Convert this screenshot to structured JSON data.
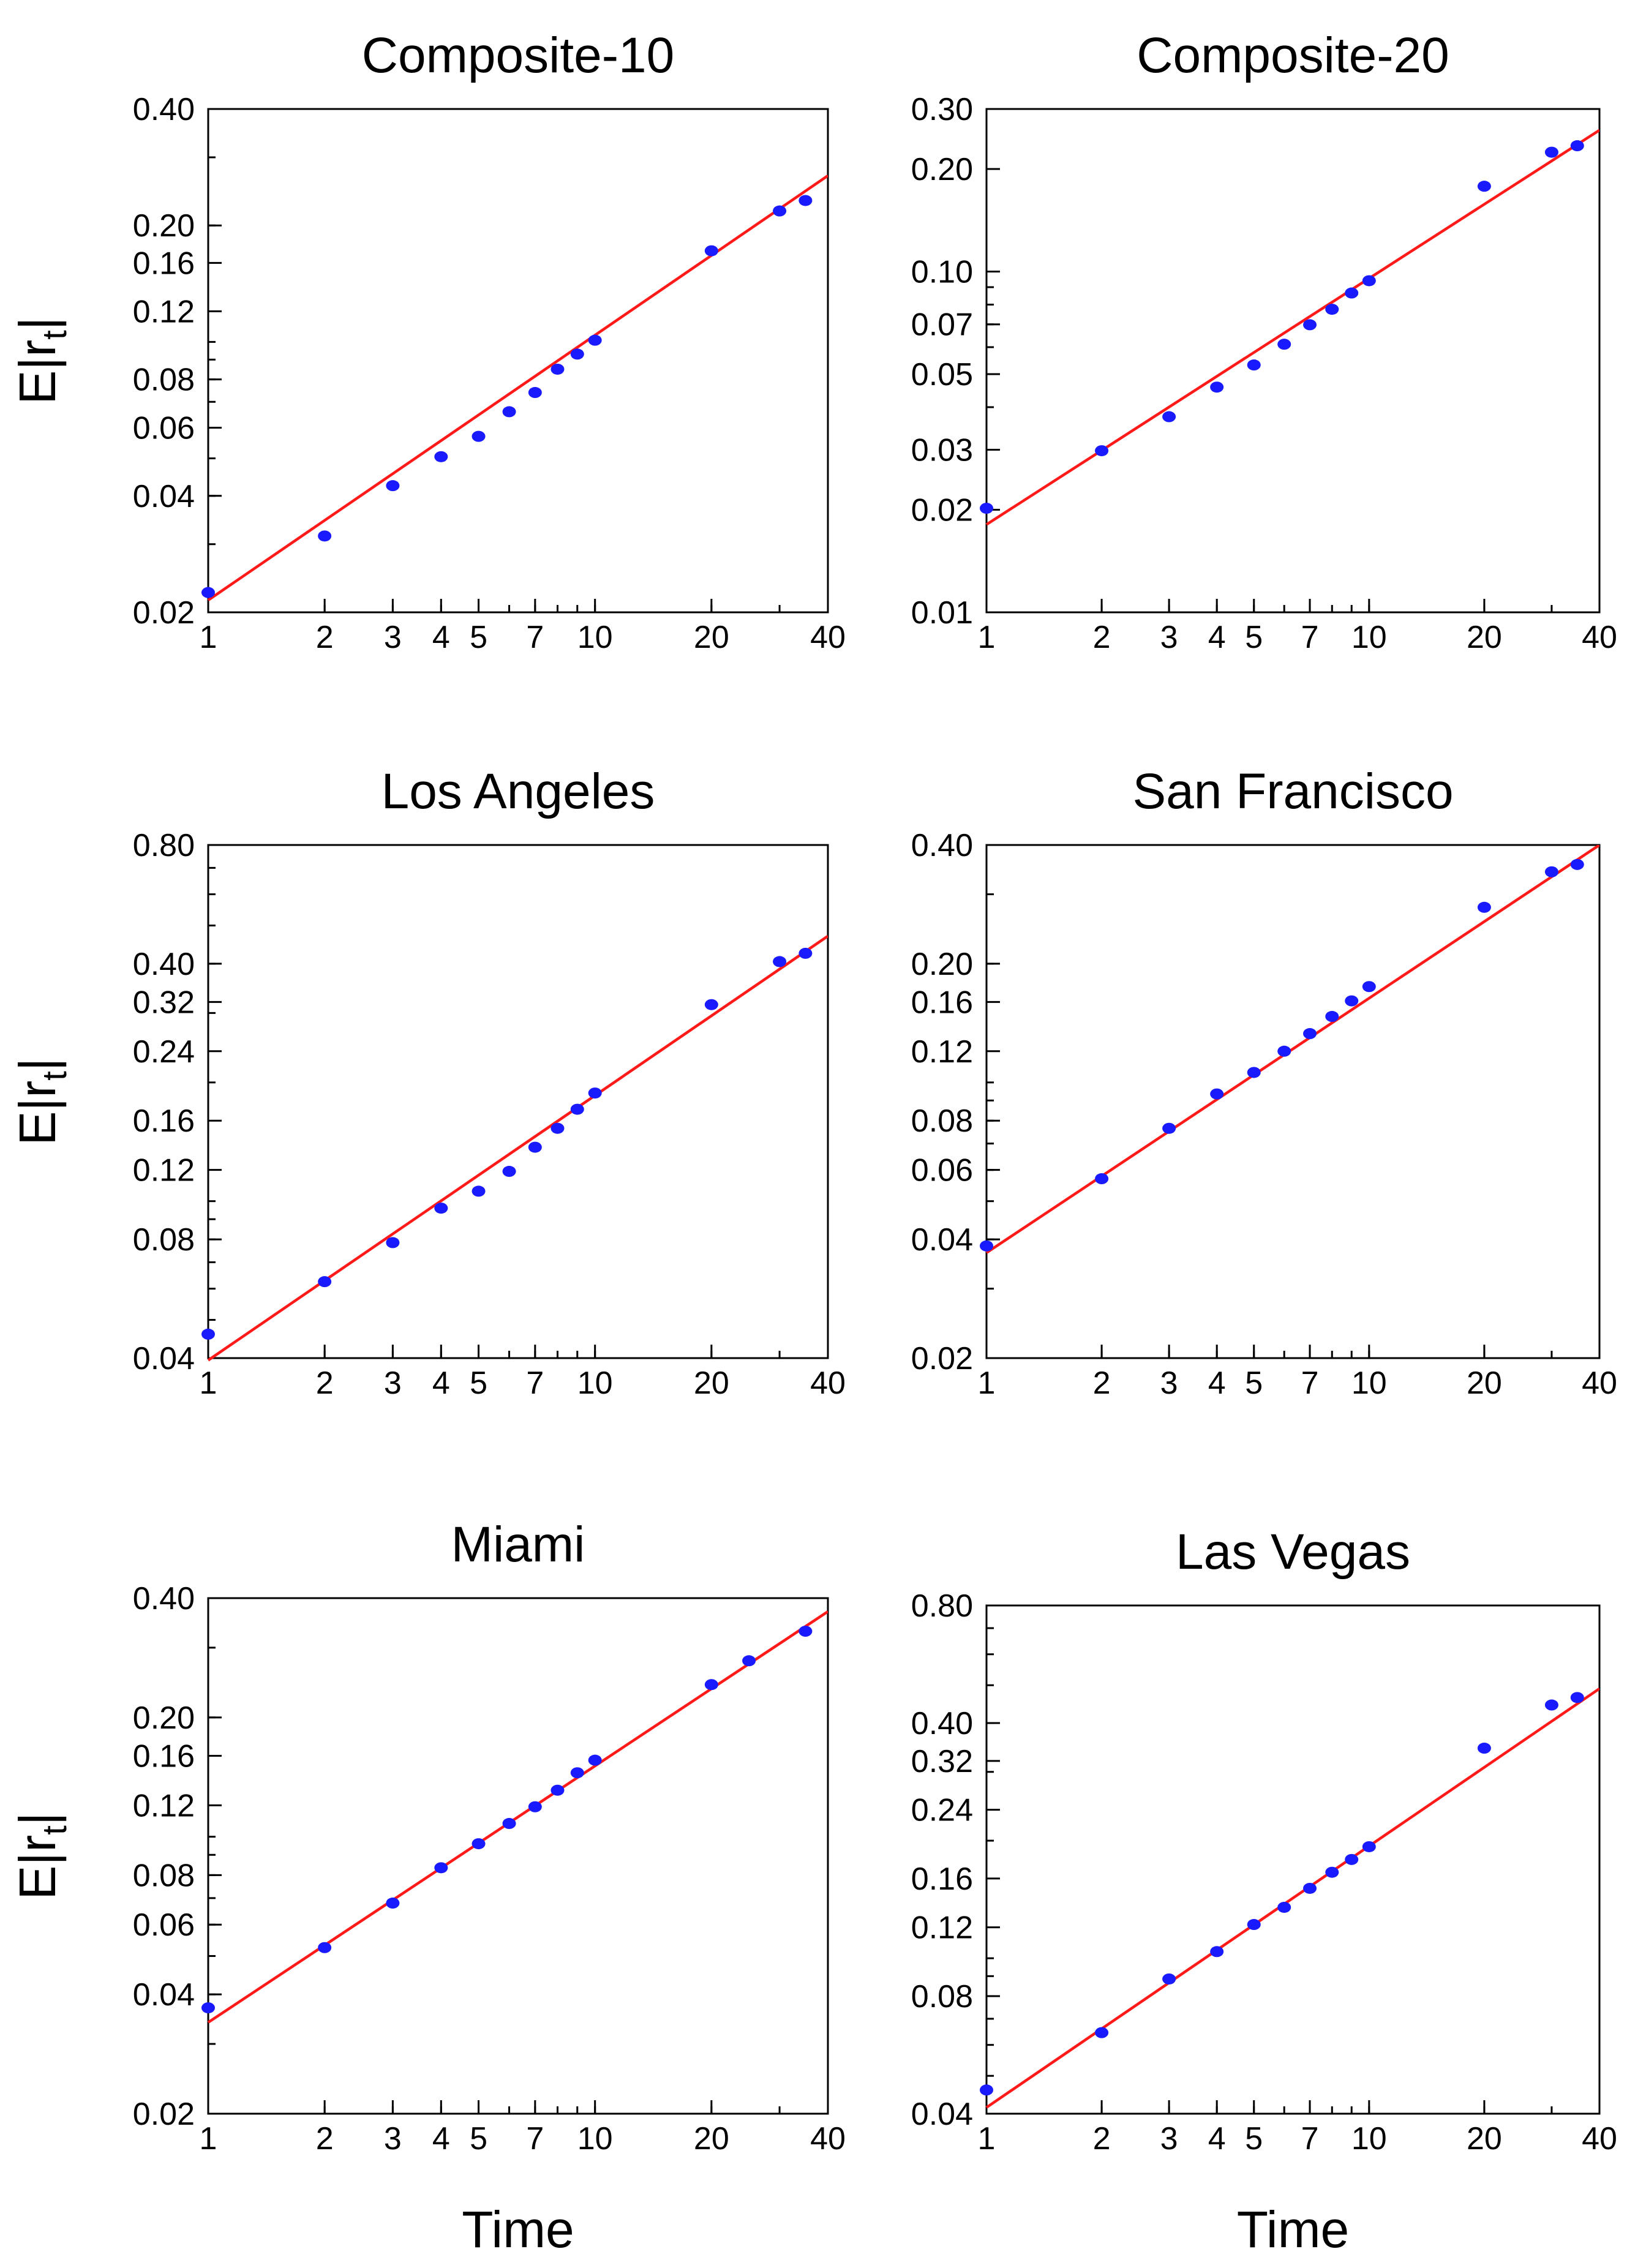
{
  "chart_data": [
    {
      "type": "scatter",
      "title": "Composite-10",
      "xscale": "log",
      "yscale": "log",
      "xlim": [
        1,
        40
      ],
      "ylim": [
        0.02,
        0.4
      ],
      "xticks": [
        1,
        2,
        3,
        4,
        5,
        7,
        10,
        20,
        40
      ],
      "xtick_labels": [
        "1",
        "2",
        "3",
        "4",
        "5",
        "7",
        "10",
        "20",
        "40"
      ],
      "yticks": [
        0.02,
        0.04,
        0.06,
        0.08,
        0.12,
        0.16,
        0.2,
        0.4
      ],
      "ytick_labels": [
        "0.02",
        "0.04",
        "0.06",
        "0.08",
        "0.12",
        "0.16",
        "0.20",
        "0.40"
      ],
      "ylabel": "E|r",
      "ylabel_sub": "t",
      "ylabel_end": "|",
      "xlabel": "",
      "points": {
        "x": [
          1,
          2,
          3,
          4,
          5,
          6,
          7,
          8,
          9,
          10,
          20,
          30,
          35
        ],
        "y": [
          0.0225,
          0.0315,
          0.0425,
          0.0505,
          0.057,
          0.066,
          0.074,
          0.085,
          0.093,
          0.101,
          0.172,
          0.218,
          0.232
        ]
      },
      "fit": {
        "x": [
          1,
          40
        ],
        "y": [
          0.0215,
          0.269
        ]
      }
    },
    {
      "type": "scatter",
      "title": "Composite-20",
      "xscale": "log",
      "yscale": "log",
      "xlim": [
        1,
        40
      ],
      "ylim": [
        0.01,
        0.3
      ],
      "xticks": [
        1,
        2,
        3,
        4,
        5,
        7,
        10,
        20,
        40
      ],
      "xtick_labels": [
        "1",
        "2",
        "3",
        "4",
        "5",
        "7",
        "10",
        "20",
        "40"
      ],
      "yticks": [
        0.01,
        0.02,
        0.03,
        0.05,
        0.07,
        0.1,
        0.2,
        0.3
      ],
      "ytick_labels": [
        "0.01",
        "0.02",
        "0.03",
        "0.05",
        "0.07",
        "0.10",
        "0.20",
        "0.30"
      ],
      "ylabel": "",
      "ylabel_sub": "",
      "ylabel_end": "",
      "xlabel": "",
      "points": {
        "x": [
          1,
          2,
          3,
          4,
          5,
          6,
          7,
          8,
          9,
          10,
          20,
          30,
          35
        ],
        "y": [
          0.0202,
          0.0298,
          0.0375,
          0.0458,
          0.0532,
          0.0612,
          0.0698,
          0.0775,
          0.0865,
          0.094,
          0.178,
          0.224,
          0.234
        ]
      },
      "fit": {
        "x": [
          1,
          40
        ],
        "y": [
          0.0181,
          0.26
        ]
      }
    },
    {
      "type": "scatter",
      "title": "Los Angeles",
      "xscale": "log",
      "yscale": "log",
      "xlim": [
        1,
        40
      ],
      "ylim": [
        0.04,
        0.8
      ],
      "xticks": [
        1,
        2,
        3,
        4,
        5,
        7,
        10,
        20,
        40
      ],
      "xtick_labels": [
        "1",
        "2",
        "3",
        "4",
        "5",
        "7",
        "10",
        "20",
        "40"
      ],
      "yticks": [
        0.04,
        0.08,
        0.12,
        0.16,
        0.24,
        0.32,
        0.4,
        0.8
      ],
      "ytick_labels": [
        "0.04",
        "0.08",
        "0.12",
        "0.16",
        "0.24",
        "0.32",
        "0.40",
        "0.80"
      ],
      "ylabel": "E|r",
      "ylabel_sub": "t",
      "ylabel_end": "|",
      "xlabel": "",
      "points": {
        "x": [
          1,
          2,
          3,
          4,
          5,
          6,
          7,
          8,
          9,
          10,
          20,
          30,
          35
        ],
        "y": [
          0.046,
          0.0625,
          0.0785,
          0.096,
          0.106,
          0.119,
          0.137,
          0.153,
          0.171,
          0.188,
          0.315,
          0.405,
          0.425
        ]
      },
      "fit": {
        "x": [
          1,
          40
        ],
        "y": [
          0.0395,
          0.47
        ]
      }
    },
    {
      "type": "scatter",
      "title": "San Francisco",
      "xscale": "log",
      "yscale": "log",
      "xlim": [
        1,
        40
      ],
      "ylim": [
        0.02,
        0.4
      ],
      "xticks": [
        1,
        2,
        3,
        4,
        5,
        7,
        10,
        20,
        40
      ],
      "xtick_labels": [
        "1",
        "2",
        "3",
        "4",
        "5",
        "7",
        "10",
        "20",
        "40"
      ],
      "yticks": [
        0.02,
        0.04,
        0.06,
        0.08,
        0.12,
        0.16,
        0.2,
        0.4
      ],
      "ytick_labels": [
        "0.02",
        "0.04",
        "0.06",
        "0.08",
        "0.12",
        "0.16",
        "0.20",
        "0.40"
      ],
      "ylabel": "",
      "ylabel_sub": "",
      "ylabel_end": "",
      "xlabel": "",
      "points": {
        "x": [
          1,
          2,
          3,
          4,
          5,
          6,
          7,
          8,
          9,
          10,
          20,
          30,
          35
        ],
        "y": [
          0.0385,
          0.057,
          0.0765,
          0.0935,
          0.106,
          0.12,
          0.133,
          0.147,
          0.161,
          0.175,
          0.278,
          0.342,
          0.357
        ]
      },
      "fit": {
        "x": [
          1,
          40
        ],
        "y": [
          0.037,
          0.4
        ]
      }
    },
    {
      "type": "scatter",
      "title": "Miami",
      "xscale": "log",
      "yscale": "log",
      "xlim": [
        1,
        40
      ],
      "ylim": [
        0.02,
        0.4
      ],
      "xticks": [
        1,
        2,
        3,
        4,
        5,
        7,
        10,
        20,
        40
      ],
      "xtick_labels": [
        "1",
        "2",
        "3",
        "4",
        "5",
        "7",
        "10",
        "20",
        "40"
      ],
      "yticks": [
        0.02,
        0.04,
        0.06,
        0.08,
        0.12,
        0.16,
        0.2,
        0.4
      ],
      "ytick_labels": [
        "0.02",
        "0.04",
        "0.06",
        "0.08",
        "0.12",
        "0.16",
        "0.20",
        "0.40"
      ],
      "ylabel": "E|r",
      "ylabel_sub": "t",
      "ylabel_end": "|",
      "xlabel": "Time",
      "points": {
        "x": [
          1,
          2,
          3,
          4,
          5,
          6,
          7,
          8,
          9,
          10,
          20,
          25,
          35
        ],
        "y": [
          0.037,
          0.0525,
          0.068,
          0.0835,
          0.096,
          0.108,
          0.119,
          0.131,
          0.145,
          0.156,
          0.242,
          0.278,
          0.33
        ]
      },
      "fit": {
        "x": [
          1,
          40
        ],
        "y": [
          0.034,
          0.37
        ]
      }
    },
    {
      "type": "scatter",
      "title": "Las Vegas",
      "xscale": "log",
      "yscale": "log",
      "xlim": [
        1,
        40
      ],
      "ylim": [
        0.04,
        0.8
      ],
      "xticks": [
        1,
        2,
        3,
        4,
        5,
        7,
        10,
        20,
        40
      ],
      "xtick_labels": [
        "1",
        "2",
        "3",
        "4",
        "5",
        "7",
        "10",
        "20",
        "40"
      ],
      "yticks": [
        0.04,
        0.08,
        0.12,
        0.16,
        0.24,
        0.32,
        0.4,
        0.8
      ],
      "ytick_labels": [
        "0.04",
        "0.08",
        "0.12",
        "0.16",
        "0.24",
        "0.32",
        "0.40",
        "0.80"
      ],
      "ylabel": "",
      "ylabel_sub": "",
      "ylabel_end": "",
      "xlabel": "Time",
      "points": {
        "x": [
          1,
          2,
          3,
          4,
          5,
          6,
          7,
          8,
          9,
          10,
          20,
          30,
          35
        ],
        "y": [
          0.046,
          0.0645,
          0.0885,
          0.104,
          0.122,
          0.135,
          0.151,
          0.166,
          0.179,
          0.193,
          0.345,
          0.445,
          0.465
        ]
      },
      "fit": {
        "x": [
          1,
          40
        ],
        "y": [
          0.0415,
          0.49
        ]
      }
    }
  ]
}
